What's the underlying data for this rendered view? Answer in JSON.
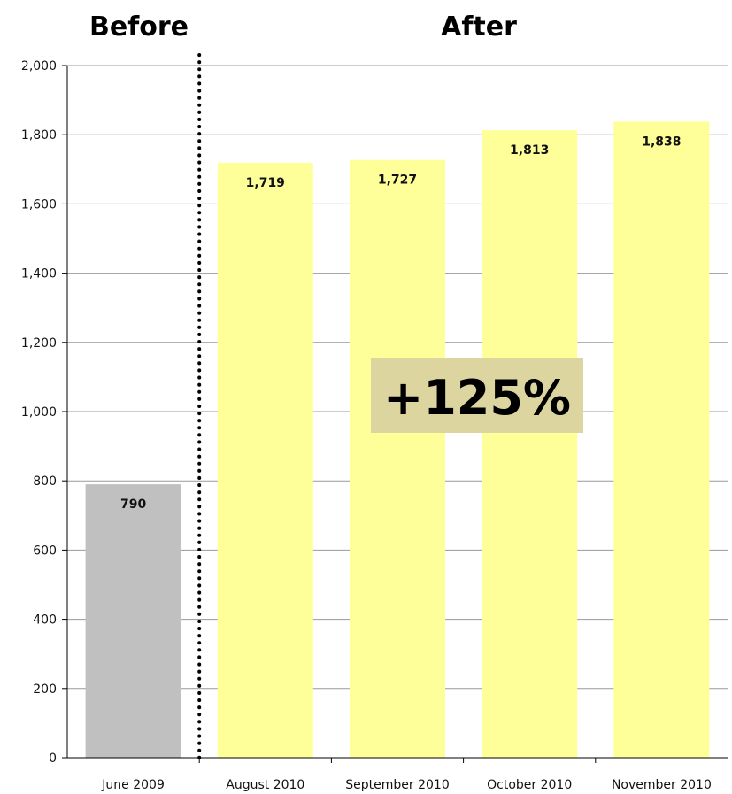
{
  "headers": {
    "before": "Before",
    "after": "After"
  },
  "callout": "+125%",
  "colors": {
    "before_bar": "#c0c0c0",
    "after_bar": "#ffff99",
    "callout_bg": "#ddd5a0",
    "grid": "#999999"
  },
  "chart_data": {
    "type": "bar",
    "categories": [
      "June 2009",
      "August 2010",
      "September 2010",
      "October 2010",
      "November 2010"
    ],
    "values": [
      790,
      1719,
      1727,
      1813,
      1838
    ],
    "data_labels": [
      "790",
      "1,719",
      "1,727",
      "1,813",
      "1,838"
    ],
    "group": [
      "before",
      "after",
      "after",
      "after",
      "after"
    ],
    "ylim": [
      0,
      2000
    ],
    "yticks": [
      0,
      200,
      400,
      600,
      800,
      1000,
      1200,
      1400,
      1600,
      1800,
      2000
    ],
    "ytick_labels": [
      "0",
      "200",
      "400",
      "600",
      "800",
      "1,000",
      "1,200",
      "1,400",
      "1,600",
      "1,800",
      "2,000"
    ],
    "grid": true,
    "xlabel": "",
    "ylabel": ""
  }
}
